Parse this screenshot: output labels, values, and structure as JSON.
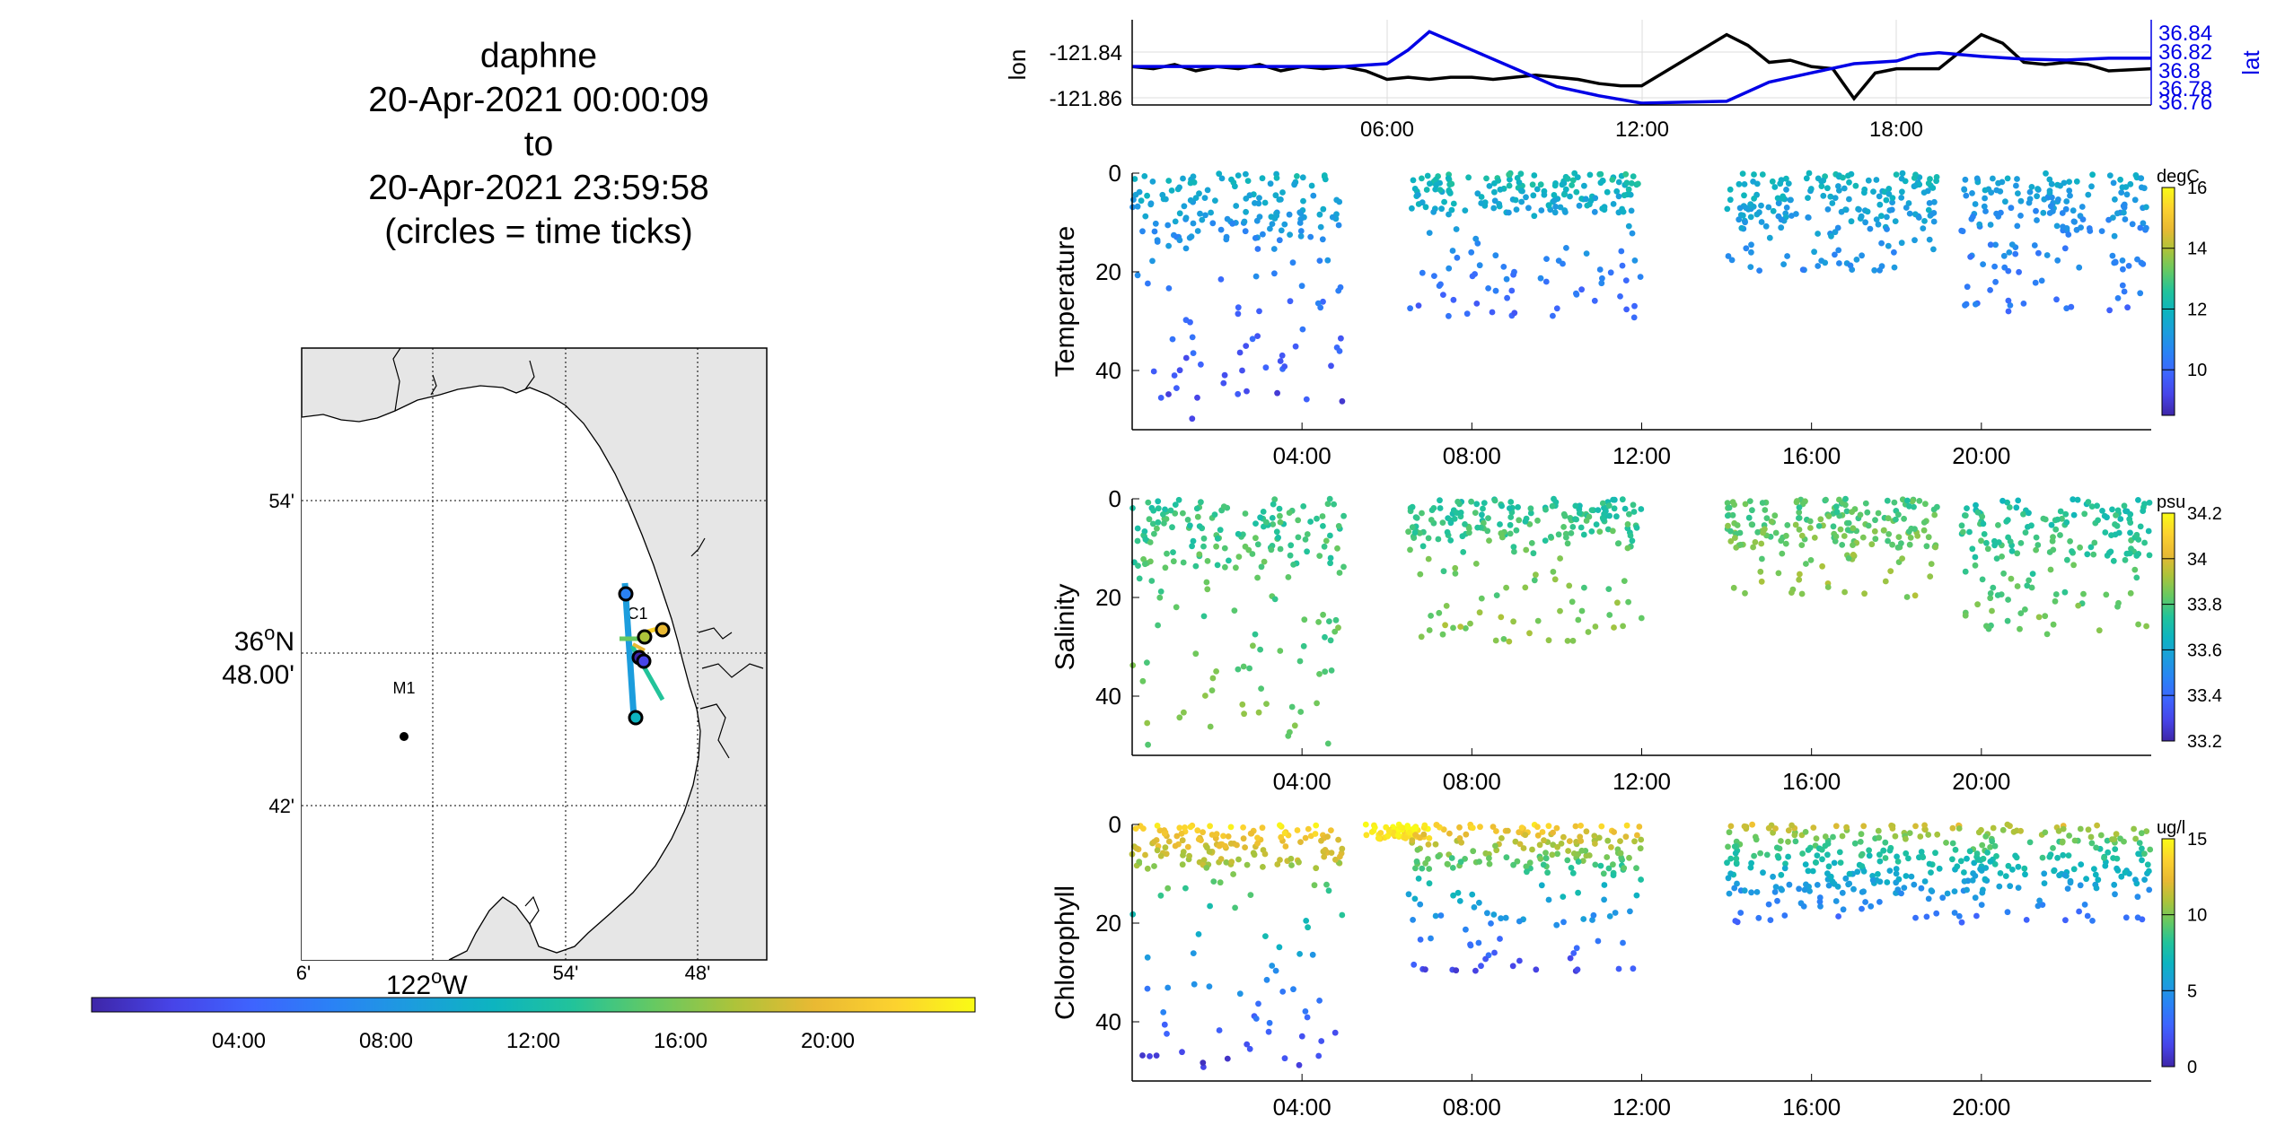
{
  "title_lines": [
    "daphne",
    "20-Apr-2021 00:00:09",
    "to",
    "20-Apr-2021 23:59:58",
    "(circles = time ticks)"
  ],
  "colors": {
    "line_lon": "#000000",
    "line_lat": "#0000e6",
    "land": "#e6e6e6",
    "parula": [
      "#3e26a8",
      "#4744e8",
      "#3e64fe",
      "#2a82f5",
      "#1c9ddd",
      "#0db4c0",
      "#22c39a",
      "#66c962",
      "#adc33a",
      "#e9b933",
      "#fcd22f",
      "#f9fb15"
    ]
  },
  "chart_data": [
    {
      "type": "map",
      "ticks_lat": [
        "54'",
        "48.00'",
        "42'"
      ],
      "lat_label_top": "36",
      "lat_label_sup": "o",
      "lat_label_suffix": "N",
      "ticks_lon": [
        "6'",
        "54'",
        "48'"
      ],
      "lon_label_prefix": "122",
      "lon_label_sup": "o",
      "lon_label_suffix": "W",
      "stations": [
        {
          "name": "M1"
        },
        {
          "name": "C1"
        }
      ],
      "colorbar_ticks": [
        "04:00",
        "08:00",
        "12:00",
        "16:00",
        "20:00"
      ],
      "colorbar_range_hours": [
        0,
        24
      ]
    },
    {
      "type": "line",
      "ylabel_left": "lon",
      "ylabel_right": "lat",
      "yticks_left": [
        "-121.84",
        "-121.86"
      ],
      "yticks_right": [
        "36.84",
        "36.82",
        "36.8",
        "36.78",
        "36.76"
      ],
      "xticks": [
        "06:00",
        "12:00",
        "18:00"
      ],
      "x_range_hours": [
        0,
        24
      ],
      "ylim_left": [
        -121.863,
        -121.823
      ],
      "ylim_right": [
        36.755,
        36.848
      ],
      "series": [
        {
          "name": "lon",
          "x": [
            0,
            0.5,
            1,
            1.5,
            2,
            2.5,
            3,
            3.5,
            4,
            4.5,
            5,
            5.5,
            6,
            6.5,
            7,
            7.5,
            8,
            8.5,
            9,
            9.5,
            10,
            10.5,
            11,
            11.5,
            12,
            13,
            14,
            14.5,
            15,
            15.5,
            16,
            16.5,
            17,
            17.5,
            18,
            19,
            20,
            20.5,
            21,
            21.5,
            22,
            22.5,
            23,
            24
          ],
          "y": [
            -121.845,
            -121.846,
            -121.844,
            -121.847,
            -121.845,
            -121.846,
            -121.844,
            -121.847,
            -121.845,
            -121.846,
            -121.845,
            -121.847,
            -121.851,
            -121.85,
            -121.851,
            -121.85,
            -121.85,
            -121.851,
            -121.85,
            -121.849,
            -121.85,
            -121.851,
            -121.853,
            -121.854,
            -121.854,
            -121.842,
            -121.83,
            -121.835,
            -121.843,
            -121.842,
            -121.845,
            -121.846,
            -121.86,
            -121.848,
            -121.846,
            -121.846,
            -121.83,
            -121.834,
            -121.843,
            -121.844,
            -121.843,
            -121.844,
            -121.847,
            -121.846
          ]
        },
        {
          "name": "lat",
          "x": [
            0,
            2,
            4,
            5,
            6,
            6.5,
            7,
            7.5,
            8,
            9,
            10,
            11,
            12,
            13,
            14,
            15,
            16,
            17,
            18,
            18.5,
            19,
            20,
            21,
            22,
            23,
            24
          ],
          "y": [
            36.797,
            36.797,
            36.797,
            36.797,
            36.8,
            36.815,
            36.835,
            36.825,
            36.815,
            36.795,
            36.775,
            36.765,
            36.757,
            36.758,
            36.759,
            36.78,
            36.79,
            36.8,
            36.803,
            36.81,
            36.812,
            36.808,
            36.805,
            36.804,
            36.806,
            36.806
          ]
        }
      ]
    },
    {
      "type": "scatter",
      "ylabel": "Temperature",
      "units": "degC",
      "yticks": [
        "0",
        "20",
        "40"
      ],
      "ylim": [
        0,
        52
      ],
      "xticks": [
        "04:00",
        "08:00",
        "12:00",
        "16:00",
        "20:00"
      ],
      "x_range_hours": [
        0,
        24
      ],
      "colorbar_ticks": [
        "16",
        "14",
        "12",
        "10"
      ],
      "clim": [
        8.5,
        16
      ],
      "segments": [
        {
          "t": [
            0,
            5
          ],
          "depth_max": 50,
          "value_surface": 12.0,
          "value_deep": 9.2,
          "shallow_band": 14
        },
        {
          "t": [
            6.5,
            12
          ],
          "depth_max": 30,
          "value_surface": 12.5,
          "value_deep": 9.8,
          "shallow_band": 8
        },
        {
          "t": [
            14,
            19
          ],
          "depth_max": 20,
          "value_surface": 12.0,
          "value_deep": 10.8,
          "shallow_band": 10
        },
        {
          "t": [
            19.5,
            24
          ],
          "depth_max": 28,
          "value_surface": 11.6,
          "value_deep": 10.2,
          "shallow_band": 12
        }
      ]
    },
    {
      "type": "scatter",
      "ylabel": "Salinity",
      "units": "psu",
      "yticks": [
        "0",
        "20",
        "40"
      ],
      "ylim": [
        0,
        52
      ],
      "xticks": [
        "04:00",
        "08:00",
        "12:00",
        "16:00",
        "20:00"
      ],
      "x_range_hours": [
        0,
        24
      ],
      "colorbar_ticks": [
        "34.2",
        "34",
        "33.8",
        "33.6",
        "33.4",
        "33.2"
      ],
      "clim": [
        33.2,
        34.2
      ],
      "segments": [
        {
          "t": [
            0,
            5
          ],
          "depth_max": 50,
          "value_surface": 33.75,
          "value_deep": 33.85,
          "shallow_band": 14
        },
        {
          "t": [
            6.5,
            12
          ],
          "depth_max": 30,
          "value_surface": 33.72,
          "value_deep": 33.9,
          "shallow_band": 8
        },
        {
          "t": [
            14,
            19
          ],
          "depth_max": 20,
          "value_surface": 33.78,
          "value_deep": 33.9,
          "shallow_band": 10
        },
        {
          "t": [
            19.5,
            24
          ],
          "depth_max": 28,
          "value_surface": 33.7,
          "value_deep": 33.85,
          "shallow_band": 12
        }
      ]
    },
    {
      "type": "scatter",
      "ylabel": "Chlorophyll",
      "units": "ug/l",
      "yticks": [
        "0",
        "20",
        "40"
      ],
      "ylim": [
        0,
        52
      ],
      "xticks": [
        "04:00",
        "08:00",
        "12:00",
        "16:00",
        "20:00"
      ],
      "x_range_hours": [
        0,
        24
      ],
      "colorbar_ticks": [
        "15",
        "10",
        "5",
        "0"
      ],
      "clim": [
        0,
        15
      ],
      "segments": [
        {
          "t": [
            0,
            5
          ],
          "depth_max": 50,
          "value_surface": 14.5,
          "value_deep": 1.0,
          "shallow_band": 9
        },
        {
          "t": [
            5.5,
            7
          ],
          "depth_max": 3,
          "value_surface": 15.0,
          "value_deep": 14.0,
          "shallow_band": 3
        },
        {
          "t": [
            6.5,
            12
          ],
          "depth_max": 30,
          "value_surface": 14.0,
          "value_deep": 1.5,
          "shallow_band": 9
        },
        {
          "t": [
            14,
            24
          ],
          "depth_max": 20,
          "value_surface": 12.0,
          "value_deep": 3.0,
          "shallow_band": 14
        }
      ]
    }
  ]
}
